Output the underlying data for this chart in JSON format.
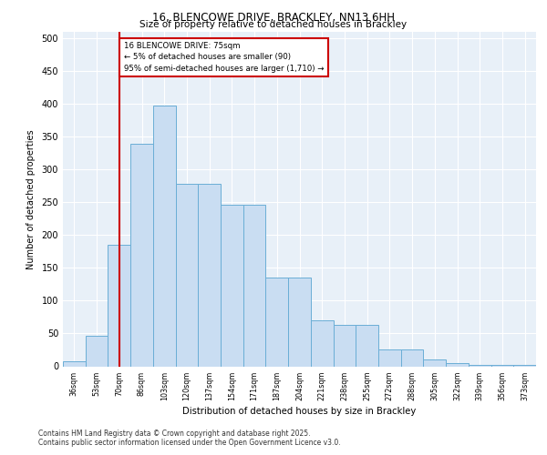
{
  "title_line1": "16, BLENCOWE DRIVE, BRACKLEY, NN13 6HH",
  "title_line2": "Size of property relative to detached houses in Brackley",
  "xlabel": "Distribution of detached houses by size in Brackley",
  "ylabel": "Number of detached properties",
  "bar_labels": [
    "36sqm",
    "53sqm",
    "70sqm",
    "86sqm",
    "103sqm",
    "120sqm",
    "137sqm",
    "154sqm",
    "171sqm",
    "187sqm",
    "204sqm",
    "221sqm",
    "238sqm",
    "255sqm",
    "272sqm",
    "288sqm",
    "305sqm",
    "322sqm",
    "339sqm",
    "356sqm",
    "373sqm"
  ],
  "bar_values": [
    7,
    46,
    185,
    340,
    398,
    278,
    278,
    246,
    246,
    135,
    135,
    70,
    63,
    63,
    25,
    25,
    10,
    5,
    2,
    2,
    2
  ],
  "bar_color": "#c9ddf2",
  "bar_edge_color": "#6aaed6",
  "vline_color": "#cc0000",
  "annotation_text": "16 BLENCOWE DRIVE: 75sqm\n← 5% of detached houses are smaller (90)\n95% of semi-detached houses are larger (1,710) →",
  "annotation_box_edgecolor": "#cc0000",
  "ylim": [
    0,
    510
  ],
  "yticks": [
    0,
    50,
    100,
    150,
    200,
    250,
    300,
    350,
    400,
    450,
    500
  ],
  "footer_line1": "Contains HM Land Registry data © Crown copyright and database right 2025.",
  "footer_line2": "Contains public sector information licensed under the Open Government Licence v3.0.",
  "bg_color": "#e8f0f8",
  "grid_color": "#ffffff"
}
